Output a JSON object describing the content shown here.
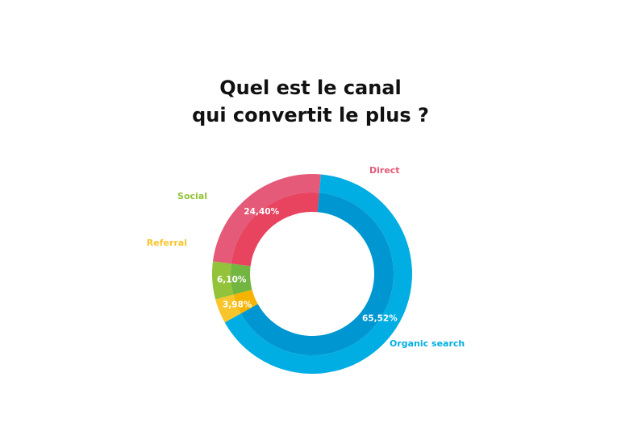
{
  "chart_data": {
    "type": "pie",
    "title_lines": [
      "Quel est le canal",
      "qui convertit le plus ?"
    ],
    "series": [
      {
        "name": "Direct",
        "value": 24.4,
        "value_label": "24,40%",
        "color": "#e8435f",
        "outer_color": "#e45a78"
      },
      {
        "name": "Organic search",
        "value": 65.52,
        "value_label": "65,52%",
        "color": "#0096d1",
        "outer_color": "#00aee3"
      },
      {
        "name": "Referral",
        "value": 3.98,
        "value_label": "3,98%",
        "color": "#f6b400",
        "outer_color": "#f8c52c"
      },
      {
        "name": "Social",
        "value": 6.1,
        "value_label": "6,10%",
        "color": "#72b541",
        "outer_color": "#92c33a"
      }
    ],
    "legend": "labels-outside"
  }
}
